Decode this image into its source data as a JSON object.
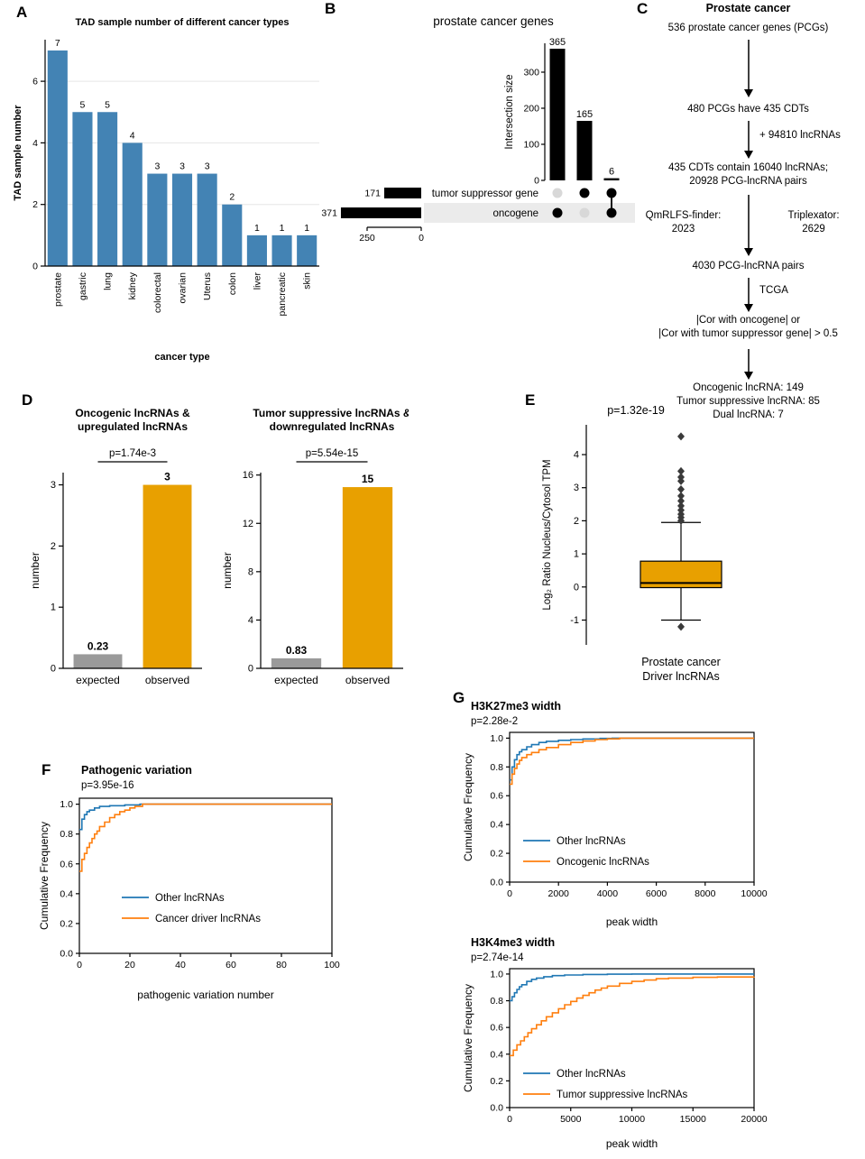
{
  "page": {
    "background": "#ffffff"
  },
  "panel_labels": {
    "A": "A",
    "B": "B",
    "C": "C",
    "D": "D",
    "E": "E",
    "F": "F",
    "G": "G"
  },
  "colors": {
    "bar_blue": "#4383b4",
    "orange": "#E8A000",
    "gray": "#9a9a9a",
    "line_blue": "#1f77b4",
    "line_orange": "#ff7f0e",
    "black": "#000000"
  },
  "panel_c": {
    "title": "Prostate cancer",
    "node1": "536 prostate cancer genes (PCGs)",
    "node2": "480 PCGs have 435 CDTs",
    "arrow1_label": "+ 94810 lncRNAs",
    "node3_line1": "435 CDTs contain 16040 lncRNAs;",
    "node3_line2": "20928 PCG-lncRNA pairs",
    "left_tool_line1": "QmRLFS-finder:",
    "left_tool_line2": "2023",
    "right_tool_line1": "Triplexator:",
    "right_tool_line2": "2629",
    "node4": "4030 PCG-lncRNA pairs",
    "arrow2_label": "TCGA",
    "node5_line1": "|Cor with oncogene| or",
    "node5_line2": "|Cor with tumor suppressor gene| > 0.5",
    "result_line1": "Oncogenic lncRNA: 149",
    "result_line2": "Tumor suppressive lncRNA: 85",
    "result_line3": "Dual lncRNA: 7"
  },
  "chart_data": [
    {
      "id": "panel-a-tad-samples",
      "type": "bar",
      "title": "TAD sample number of different cancer types",
      "xlabel": "cancer type",
      "ylabel": "TAD sample number",
      "categories": [
        "prostate",
        "gastric",
        "lung",
        "kidney",
        "colorectal",
        "ovarian",
        "Uterus",
        "colon",
        "liver",
        "pancreatic",
        "skin"
      ],
      "values": [
        7,
        5,
        5,
        4,
        3,
        3,
        3,
        2,
        1,
        1,
        1
      ],
      "ylim": [
        0,
        7.35
      ],
      "yticks": [
        0,
        2,
        4,
        6
      ],
      "bar_color": "#4383b4",
      "grid": true
    },
    {
      "id": "panel-b-upset",
      "type": "upset",
      "title": "prostate cancer genes",
      "intersection_axis_label": "Intersection size",
      "intersection_sizes": [
        365,
        165,
        6
      ],
      "intersection_yticks": [
        0,
        100,
        200,
        300
      ],
      "intersection_ymax": 380,
      "sets": [
        {
          "name": "tumor suppressor gene",
          "size": 171
        },
        {
          "name": "oncogene",
          "size": 371
        }
      ],
      "set_axis_ticks": [
        250,
        0
      ],
      "membership": [
        [
          false,
          true
        ],
        [
          true,
          false
        ],
        [
          true,
          true
        ]
      ]
    },
    {
      "id": "panel-d1-oncogenic-overlap",
      "type": "bar",
      "title_line1": "Oncogenic lncRNAs &",
      "title_line2": "upregulated lncRNAs",
      "pvalue": "p=1.74e-3",
      "ylabel": "number",
      "categories": [
        "expected",
        "observed"
      ],
      "values": [
        0.23,
        3
      ],
      "bar_colors": [
        "#9a9a9a",
        "#E8A000"
      ],
      "ylim": [
        0,
        3.2
      ],
      "yticks": [
        0,
        1,
        2,
        3
      ]
    },
    {
      "id": "panel-d2-suppressive-overlap",
      "type": "bar",
      "title_line1": "Tumor suppressive lncRNAs &",
      "title_line2": "downregulated lncRNAs",
      "pvalue": "p=5.54e-15",
      "ylabel": "number",
      "categories": [
        "expected",
        "observed"
      ],
      "values": [
        0.83,
        15
      ],
      "bar_colors": [
        "#9a9a9a",
        "#E8A000"
      ],
      "ylim": [
        0,
        16.2
      ],
      "yticks": [
        0,
        4,
        8,
        12,
        16
      ]
    },
    {
      "id": "panel-e-localization-box",
      "type": "box",
      "pvalue": "p=1.32e-19",
      "ylabel": "Log₂ Ratio Nucleus/Cytosol TPM",
      "xlabel_line1": "Prostate cancer",
      "xlabel_line2": "Driver lncRNAs",
      "box": {
        "whisker_low": -1.0,
        "q1": -0.02,
        "median": 0.12,
        "q3": 0.78,
        "whisker_high": 1.95
      },
      "outliers": [
        -1.2,
        2.0,
        2.1,
        2.2,
        2.32,
        2.45,
        2.6,
        2.75,
        2.95,
        3.2,
        3.32,
        3.5,
        4.55
      ],
      "ylim": [
        -1.75,
        4.9
      ],
      "yticks": [
        -1,
        0,
        1,
        2,
        3,
        4
      ],
      "box_color": "#E8A000"
    },
    {
      "id": "panel-f-pathogenic-variation",
      "type": "cdf",
      "title": "Pathogenic variation",
      "pvalue": "p=3.95e-16",
      "xlabel": "pathogenic variation number",
      "ylabel": "Cumulative Frequency",
      "xlim": [
        0,
        100
      ],
      "xticks": [
        [
          0,
          "0"
        ],
        [
          20,
          "20"
        ],
        [
          40,
          "40"
        ],
        [
          60,
          "60"
        ],
        [
          80,
          "80"
        ],
        [
          100,
          "100"
        ]
      ],
      "ylim": [
        0,
        1.04
      ],
      "yticks": [
        [
          0,
          "0.0"
        ],
        [
          0.2,
          "0.2"
        ],
        [
          0.4,
          "0.4"
        ],
        [
          0.6,
          "0.6"
        ],
        [
          0.8,
          "0.8"
        ],
        [
          1,
          "1.0"
        ]
      ],
      "series": [
        {
          "name": "Other lncRNAs",
          "color": "#1f77b4",
          "points": [
            [
              0,
              0.83
            ],
            [
              1,
              0.9
            ],
            [
              2,
              0.93
            ],
            [
              3,
              0.95
            ],
            [
              4,
              0.96
            ],
            [
              6,
              0.975
            ],
            [
              8,
              0.985
            ],
            [
              12,
              0.99
            ],
            [
              18,
              0.995
            ],
            [
              24,
              1.0
            ]
          ]
        },
        {
          "name": "Cancer driver lncRNAs",
          "color": "#ff7f0e",
          "points": [
            [
              0,
              0.55
            ],
            [
              1,
              0.63
            ],
            [
              2,
              0.67
            ],
            [
              3,
              0.71
            ],
            [
              4,
              0.74
            ],
            [
              5,
              0.77
            ],
            [
              6,
              0.8
            ],
            [
              7,
              0.82
            ],
            [
              8,
              0.85
            ],
            [
              10,
              0.88
            ],
            [
              12,
              0.91
            ],
            [
              14,
              0.93
            ],
            [
              16,
              0.95
            ],
            [
              18,
              0.96
            ],
            [
              20,
              0.975
            ],
            [
              22,
              0.985
            ],
            [
              25,
              1.0
            ]
          ]
        }
      ]
    },
    {
      "id": "panel-g1-h3k27me3",
      "type": "cdf",
      "title": "H3K27me3 width",
      "pvalue": "p=2.28e-2",
      "xlabel": "peak width",
      "ylabel": "Cumulative Frequency",
      "xlim": [
        0,
        10000
      ],
      "xticks": [
        [
          0,
          "0"
        ],
        [
          2000,
          "2000"
        ],
        [
          4000,
          "4000"
        ],
        [
          6000,
          "6000"
        ],
        [
          8000,
          "8000"
        ],
        [
          10000,
          "10000"
        ]
      ],
      "ylim": [
        0,
        1.04
      ],
      "yticks": [
        [
          0,
          "0.0"
        ],
        [
          0.2,
          "0.2"
        ],
        [
          0.4,
          "0.4"
        ],
        [
          0.6,
          "0.6"
        ],
        [
          0.8,
          "0.8"
        ],
        [
          1,
          "1.0"
        ]
      ],
      "series": [
        {
          "name": "Other lncRNAs",
          "color": "#1f77b4",
          "points": [
            [
              0,
              0.71
            ],
            [
              100,
              0.8
            ],
            [
              200,
              0.85
            ],
            [
              300,
              0.885
            ],
            [
              400,
              0.905
            ],
            [
              500,
              0.92
            ],
            [
              700,
              0.94
            ],
            [
              900,
              0.955
            ],
            [
              1200,
              0.97
            ],
            [
              1500,
              0.978
            ],
            [
              2000,
              0.985
            ],
            [
              2500,
              0.99
            ],
            [
              3000,
              0.994
            ],
            [
              3700,
              0.998
            ],
            [
              4200,
              1.0
            ]
          ]
        },
        {
          "name": "Oncogenic lncRNAs",
          "color": "#ff7f0e",
          "points": [
            [
              0,
              0.68
            ],
            [
              100,
              0.75
            ],
            [
              200,
              0.79
            ],
            [
              300,
              0.82
            ],
            [
              400,
              0.845
            ],
            [
              500,
              0.865
            ],
            [
              700,
              0.885
            ],
            [
              900,
              0.9
            ],
            [
              1200,
              0.92
            ],
            [
              1500,
              0.935
            ],
            [
              2000,
              0.955
            ],
            [
              2500,
              0.97
            ],
            [
              3000,
              0.98
            ],
            [
              3500,
              0.99
            ],
            [
              4000,
              0.995
            ],
            [
              4500,
              1.0
            ]
          ]
        }
      ]
    },
    {
      "id": "panel-g2-h3k4me3",
      "type": "cdf",
      "title": "H3K4me3 width",
      "pvalue": "p=2.74e-14",
      "xlabel": "peak width",
      "ylabel": "Cumulative Frequency",
      "xlim": [
        0,
        20000
      ],
      "xticks": [
        [
          0,
          "0"
        ],
        [
          5000,
          "5000"
        ],
        [
          10000,
          "10000"
        ],
        [
          15000,
          "15000"
        ],
        [
          20000,
          "20000"
        ]
      ],
      "ylim": [
        0,
        1.04
      ],
      "yticks": [
        [
          0,
          "0.0"
        ],
        [
          0.2,
          "0.2"
        ],
        [
          0.4,
          "0.4"
        ],
        [
          0.6,
          "0.6"
        ],
        [
          0.8,
          "0.8"
        ],
        [
          1,
          "1.0"
        ]
      ],
      "series": [
        {
          "name": "Other lncRNAs",
          "color": "#1f77b4",
          "points": [
            [
              0,
              0.8
            ],
            [
              200,
              0.83
            ],
            [
              400,
              0.86
            ],
            [
              600,
              0.885
            ],
            [
              800,
              0.905
            ],
            [
              1000,
              0.92
            ],
            [
              1400,
              0.945
            ],
            [
              1800,
              0.96
            ],
            [
              2200,
              0.97
            ],
            [
              2800,
              0.98
            ],
            [
              3500,
              0.988
            ],
            [
              4500,
              0.993
            ],
            [
              6000,
              0.997
            ],
            [
              8000,
              0.999
            ],
            [
              10000,
              1.0
            ]
          ]
        },
        {
          "name": "Tumor suppressive lncRNAs",
          "color": "#ff7f0e",
          "points": [
            [
              0,
              0.39
            ],
            [
              300,
              0.43
            ],
            [
              600,
              0.47
            ],
            [
              900,
              0.5
            ],
            [
              1200,
              0.53
            ],
            [
              1500,
              0.56
            ],
            [
              1800,
              0.59
            ],
            [
              2200,
              0.62
            ],
            [
              2600,
              0.65
            ],
            [
              3000,
              0.68
            ],
            [
              3500,
              0.71
            ],
            [
              4000,
              0.74
            ],
            [
              4500,
              0.77
            ],
            [
              5000,
              0.795
            ],
            [
              5500,
              0.82
            ],
            [
              6000,
              0.84
            ],
            [
              6500,
              0.86
            ],
            [
              7000,
              0.88
            ],
            [
              7500,
              0.895
            ],
            [
              8000,
              0.91
            ],
            [
              9000,
              0.93
            ],
            [
              10000,
              0.945
            ],
            [
              11000,
              0.955
            ],
            [
              12000,
              0.965
            ],
            [
              13000,
              0.97
            ],
            [
              15000,
              0.975
            ],
            [
              17000,
              0.978
            ],
            [
              20000,
              0.98
            ]
          ]
        }
      ]
    }
  ]
}
